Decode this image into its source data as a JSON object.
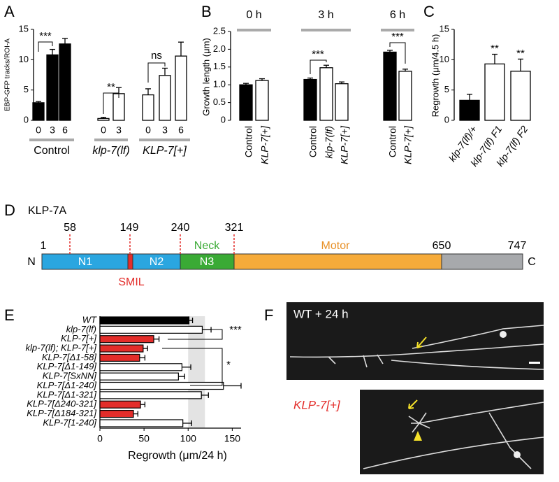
{
  "panel_labels": [
    "A",
    "B",
    "C",
    "D",
    "E",
    "F"
  ],
  "chart_data": [
    {
      "type": "bar",
      "y_label": "EBP-GFP tracks/ROI-A",
      "ylim": [
        0,
        15
      ],
      "yticks": [
        0,
        5,
        10,
        15
      ],
      "groups": [
        {
          "label": "Control",
          "label_color": "#000000",
          "categories": [
            "0",
            "3",
            "6"
          ],
          "values": [
            2.9,
            10.8,
            12.6
          ],
          "errors": [
            0.2,
            0.9,
            0.9
          ],
          "fills": [
            "#000000",
            "#000000",
            "#000000"
          ]
        },
        {
          "label": "klp-7(lf)",
          "label_color": "#3aaa35",
          "categories": [
            "0",
            "3"
          ],
          "values": [
            0.3,
            4.4
          ],
          "errors": [
            0.2,
            1.0
          ],
          "fills": [
            "#ffffff",
            "#ffffff"
          ]
        },
        {
          "label": "KLP-7[+]",
          "label_color": "#e32d2a",
          "categories": [
            "0",
            "3",
            "6"
          ],
          "values": [
            4.2,
            7.4,
            10.6
          ],
          "errors": [
            1.0,
            1.2,
            2.3
          ],
          "fills": [
            "#ffffff",
            "#ffffff",
            "#ffffff"
          ]
        }
      ],
      "annotations": [
        "***",
        "**",
        "ns"
      ]
    },
    {
      "type": "bar",
      "y_label": "Growth length (μm)",
      "ylim": [
        0,
        2.5
      ],
      "yticks": [
        0,
        0.5,
        {
          "value": 1,
          "label": "1.0"
        },
        1.5,
        {
          "value": 2,
          "label": "2.0"
        },
        2.5
      ],
      "groups": [
        {
          "label": "0 h",
          "categories": [
            "Control",
            "KLP-7[+]"
          ],
          "label_colors": [
            "#000000",
            "#e32d2a"
          ],
          "values": [
            1.0,
            1.12
          ],
          "errors": [
            0.04,
            0.05
          ],
          "fills": [
            "#000000",
            "#ffffff"
          ]
        },
        {
          "label": "3 h",
          "categories": [
            "Control",
            "klp-7(lf)",
            "KLP-7[+]"
          ],
          "label_colors": [
            "#000000",
            "#3aaa35",
            "#e32d2a"
          ],
          "values": [
            1.15,
            1.48,
            1.03
          ],
          "errors": [
            0.04,
            0.07,
            0.05
          ],
          "fills": [
            "#000000",
            "#ffffff",
            "#ffffff"
          ]
        },
        {
          "label": "6 h",
          "categories": [
            "Control",
            "KLP-7[+]"
          ],
          "label_colors": [
            "#000000",
            "#e32d2a"
          ],
          "values": [
            1.92,
            1.38
          ],
          "errors": [
            0.05,
            0.06
          ],
          "fills": [
            "#000000",
            "#ffffff"
          ]
        }
      ],
      "annotations": [
        "***",
        "***"
      ]
    },
    {
      "type": "bar",
      "y_label": "Regrowth (μm/4.5 h)",
      "ylim": [
        0,
        15
      ],
      "yticks": [
        0,
        5,
        10,
        15
      ],
      "groups": [
        {
          "categories": [
            "klp-7(lf)/+",
            "klp-7(lf) F1",
            "klp-7(lf) F2"
          ],
          "label_colors": [
            "#3aaa35",
            "#3aaa35",
            "#3aaa35"
          ],
          "values": [
            3.3,
            9.3,
            8.1
          ],
          "errors": [
            1.0,
            1.6,
            2.0
          ],
          "fills": [
            "#000000",
            "#ffffff",
            "#ffffff"
          ]
        }
      ],
      "annotations": [
        "**",
        "**"
      ]
    },
    {
      "type": "barh",
      "x_label": "Regrowth (μm/24 h)",
      "xlim": [
        0,
        160
      ],
      "xticks": [
        0,
        50,
        100,
        150
      ],
      "categories": [
        "WT",
        "klp-7(lf)",
        "KLP-7[+]",
        "klp-7(lf); KLP-7[+]",
        "KLP-7[Δ1-58]",
        "KLP-7[Δ1-149]",
        "KLP-7[SxNN]",
        "KLP-7[Δ1-240]",
        "KLP-7[Δ1-321]",
        "KLP-7[Δ240-321]",
        "KLP-7[Δ184-321]",
        "KLP-7[1-240]"
      ],
      "label_colors": [
        "#000000",
        "#3aaa35",
        "#000000",
        "#000000",
        "#000000",
        "#000000",
        "#000000",
        "#000000",
        "#000000",
        "#000000",
        "#000000",
        "#000000"
      ],
      "values": [
        101,
        116,
        61,
        49,
        45,
        93,
        89,
        140,
        115,
        46,
        38,
        94
      ],
      "errors": [
        4,
        10,
        6,
        5,
        6,
        10,
        7,
        20,
        8,
        5,
        5,
        10
      ],
      "fills": [
        "#000000",
        "#ffffff",
        "#e32d2a",
        "#e32d2a",
        "#e32d2a",
        "#ffffff",
        "#ffffff",
        "#ffffff",
        "#ffffff",
        "#e32d2a",
        "#e32d2a",
        "#ffffff"
      ],
      "shaded_range": [
        100,
        119
      ],
      "annotations": [
        "***",
        "*"
      ]
    }
  ],
  "diagram": {
    "title": "KLP-7A",
    "positions": [
      "1",
      "58",
      "149",
      "240",
      "321",
      "650",
      "747"
    ],
    "domains": [
      "N1",
      "N2",
      "N3",
      "Motor"
    ],
    "labels": [
      "Neck",
      "SMIL"
    ],
    "termini": [
      "N",
      "C"
    ]
  },
  "micrographs": {
    "top_label": "WT + 24 h",
    "bottom_label": "KLP-7[+]"
  }
}
